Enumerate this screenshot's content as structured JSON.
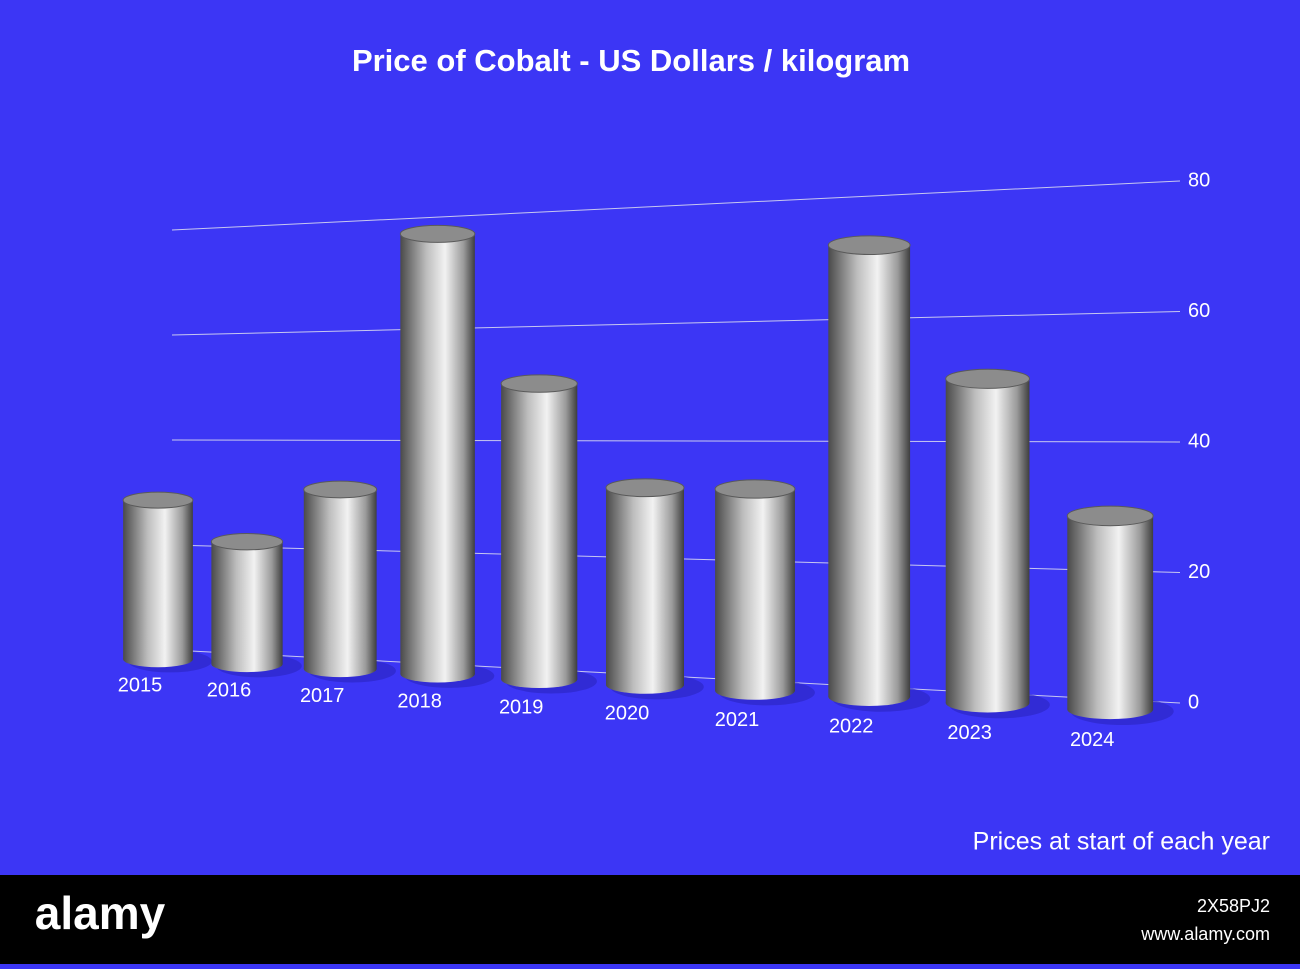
{
  "chart_data": {
    "type": "bar",
    "title": "Price of Cobalt - US Dollars / kilogram",
    "caption": "Prices at start of each year",
    "categories": [
      "2015",
      "2016",
      "2017",
      "2018",
      "2019",
      "2020",
      "2021",
      "2022",
      "2023",
      "2024"
    ],
    "values": [
      28.5,
      21,
      31,
      77,
      50,
      32,
      32,
      72,
      50,
      28.5
    ],
    "color": "#c8c8c8",
    "ylim": [
      0,
      80
    ],
    "yticks": [
      0,
      20,
      40,
      60,
      80
    ],
    "grid": true
  },
  "footer": {
    "brand": "alamy",
    "image_id": "2X58PJ2",
    "url": "www.alamy.com"
  }
}
